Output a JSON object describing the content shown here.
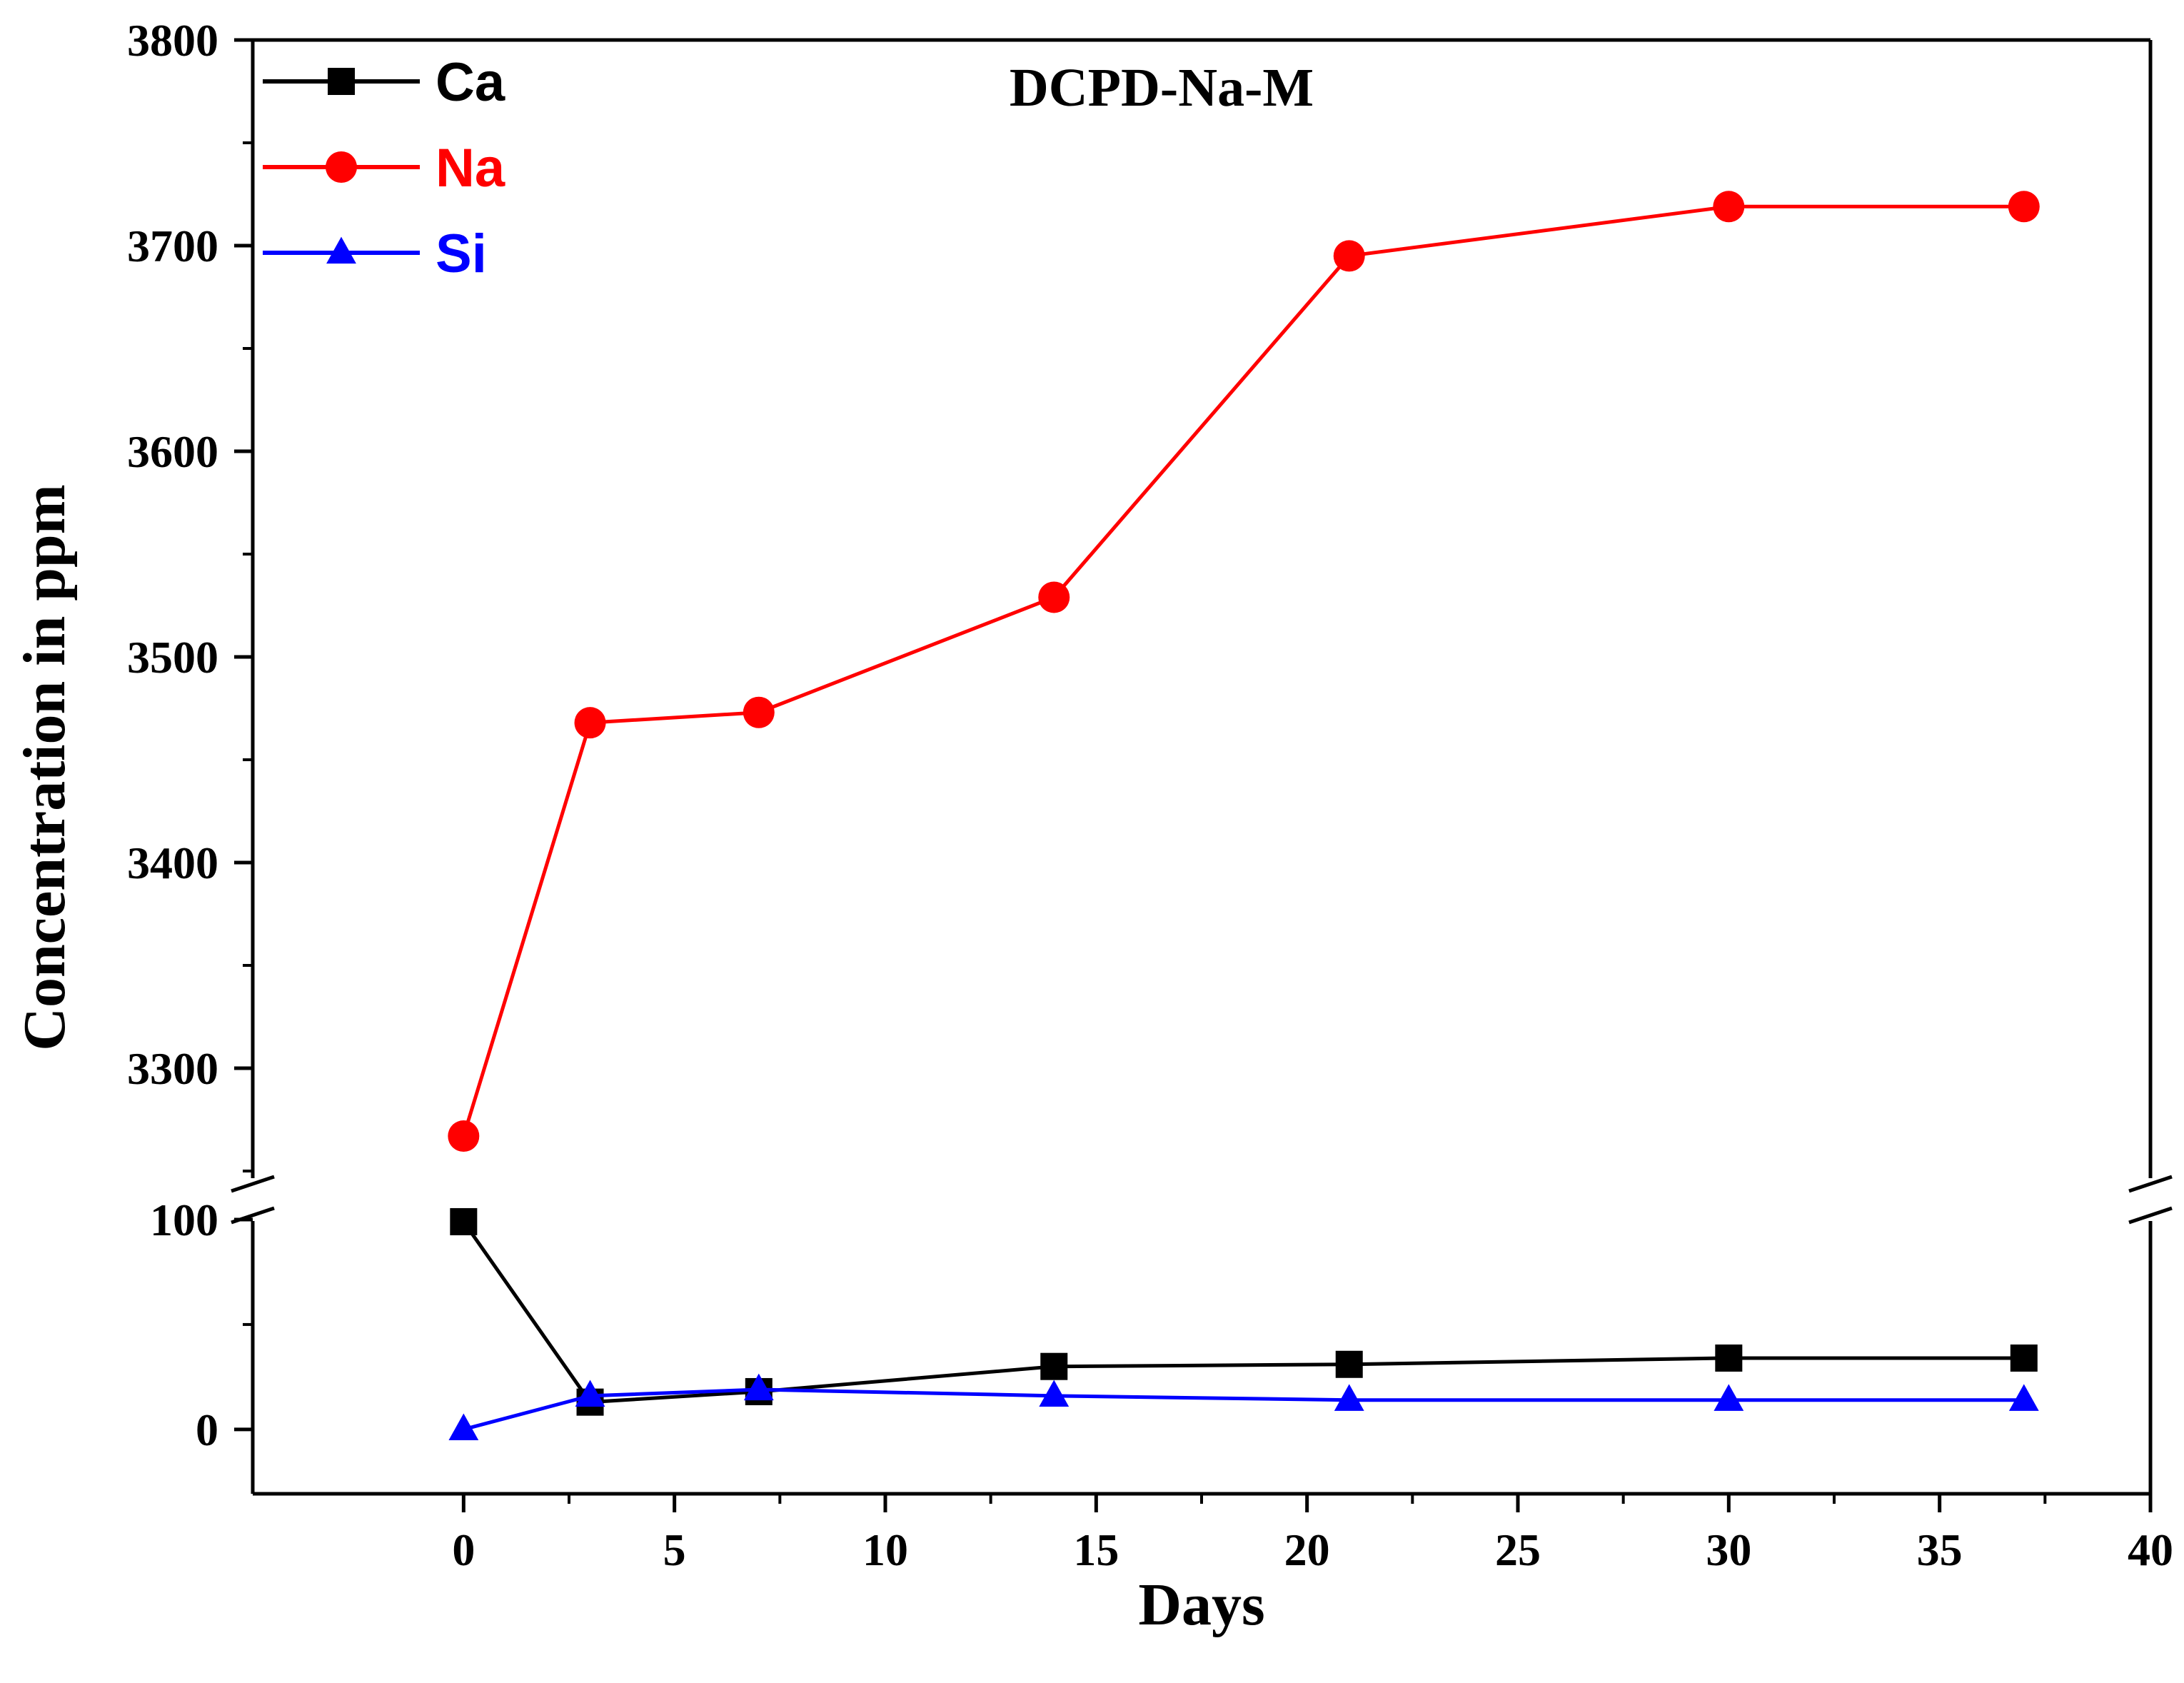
{
  "chart_data": {
    "type": "line",
    "title": "DCPD-Na-M",
    "xlabel": "Days",
    "ylabel": "Concentration in ppm",
    "xlim": [
      -5,
      40
    ],
    "xticks": [
      0,
      5,
      10,
      15,
      20,
      25,
      30,
      35,
      40
    ],
    "x_tick_labels": [
      "0",
      "5",
      "10",
      "15",
      "20",
      "25",
      "30",
      "35",
      "40"
    ],
    "broken_y_axis": true,
    "y_segments": [
      {
        "name": "upper",
        "ylim": [
          3250,
          3800
        ],
        "ticks": [
          3300,
          3400,
          3500,
          3600,
          3700,
          3800
        ],
        "tick_labels": [
          "3300",
          "3400",
          "3500",
          "3600",
          "3700",
          "3800"
        ]
      },
      {
        "name": "lower",
        "ylim": [
          -30,
          100
        ],
        "ticks": [
          0,
          100
        ],
        "tick_labels": [
          "0",
          "100"
        ]
      }
    ],
    "legend_position": "top-left",
    "grid": false,
    "x": [
      0,
      3,
      7,
      14,
      21,
      30,
      37
    ],
    "series": [
      {
        "name": "Ca",
        "color": "#000000",
        "marker": "square",
        "segment": "lower",
        "values": [
          99,
          13,
          18,
          30,
          31,
          34,
          34
        ]
      },
      {
        "name": "Na",
        "color": "#ff0000",
        "marker": "circle",
        "segment": "upper",
        "values": [
          3267,
          3468,
          3473,
          3529,
          3695,
          3719,
          3719
        ]
      },
      {
        "name": "Si",
        "color": "#0000ff",
        "marker": "triangle",
        "segment": "lower",
        "values": [
          0,
          16,
          19,
          16,
          14,
          14,
          14
        ]
      }
    ]
  }
}
